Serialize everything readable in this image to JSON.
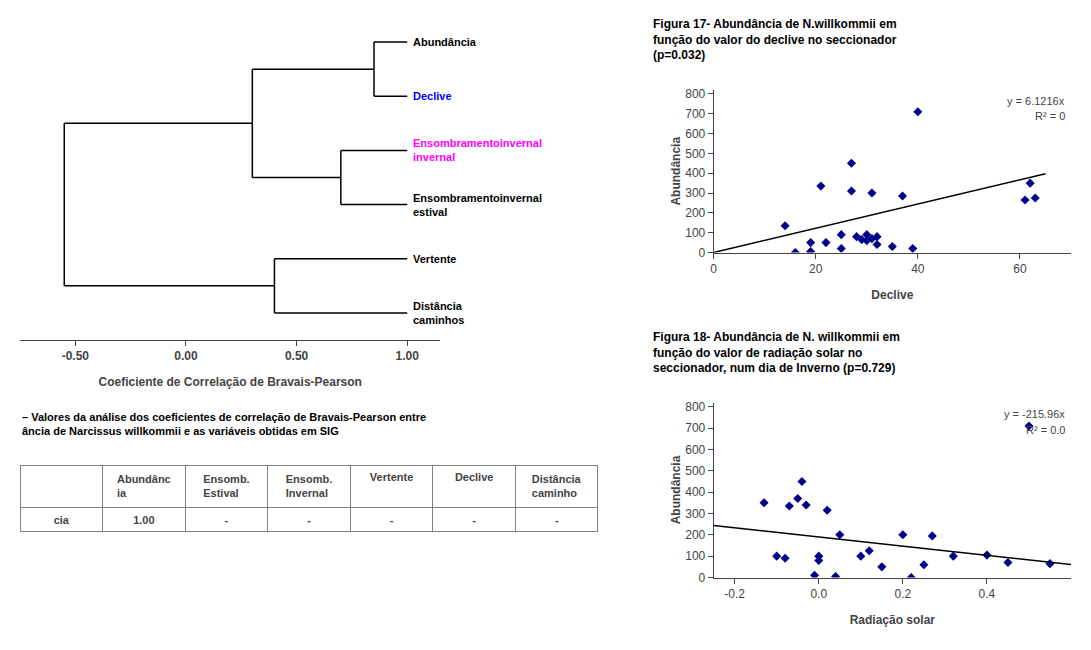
{
  "chart_data": [
    {
      "type": "dendrogram",
      "xlabel": "Coeficiente de Correlação de Bravais-Pearson",
      "xlim": [
        -0.75,
        1.15
      ],
      "xticks": [
        {
          "value": -0.5,
          "label": "-0.50"
        },
        {
          "value": 0.0,
          "label": "0.00"
        },
        {
          "value": 0.5,
          "label": "0.50"
        },
        {
          "value": 1.0,
          "label": "1.00"
        }
      ],
      "grid": false,
      "color": "#000000",
      "leaf_x": 1.0,
      "leaves": [
        "Abundância",
        "Declive",
        "Ensombramentoinvernal\ninvernal",
        "Ensombramentoinvernal\nestival",
        "Vertente",
        "Distância\ncaminhos"
      ],
      "colors": [
        "#000000",
        "#0000ff",
        "#ff00ff",
        "#000000",
        "#000000",
        "#000000"
      ],
      "merges": [
        {
          "a": 0,
          "b": 1,
          "x": 0.85
        },
        {
          "a": 2,
          "b": 3,
          "x": 0.7
        },
        {
          "a": 6,
          "b": 7,
          "x": 0.3
        },
        {
          "a": 4,
          "b": 5,
          "x": 0.4
        },
        {
          "a": 8,
          "b": 9,
          "x": -0.55
        }
      ]
    },
    {
      "type": "scatter",
      "title": "Figura 17- Abundância de N.willkommii em\nfunção do valor do declive no seccionador\n(p=0.032)",
      "x": [
        14,
        16,
        19,
        19,
        21,
        22,
        25,
        25,
        27,
        27,
        28,
        29,
        30,
        30,
        31,
        31,
        32,
        32,
        35,
        37,
        39,
        40,
        61,
        62,
        63
      ],
      "values": [
        135,
        0,
        50,
        5,
        335,
        50,
        90,
        20,
        310,
        450,
        80,
        65,
        90,
        60,
        70,
        300,
        40,
        80,
        30,
        285,
        20,
        710,
        265,
        350,
        275
      ],
      "color": "#00008b",
      "marker": "diamond",
      "xlabel": "Declive",
      "ylabel": "Abundância",
      "xlim": [
        0,
        70
      ],
      "ylim": [
        0,
        820
      ],
      "xticks": [
        0,
        20,
        40,
        60
      ],
      "yticks": [
        0,
        100,
        200,
        300,
        400,
        500,
        600,
        700,
        800
      ],
      "grid": false,
      "trendline": {
        "x": [
          0,
          65
        ],
        "values": [
          0,
          397.904
        ],
        "color": "#000000"
      },
      "annotations": [
        "y = 6.1216x",
        "R² = 0"
      ]
    },
    {
      "type": "scatter",
      "title": "Figura 18- Abundância de N. willkommii em\nfunção do valor de radiação solar no\nseccionador, num dia de Inverno (p=0.729)",
      "x": [
        -0.13,
        -0.1,
        -0.08,
        -0.07,
        -0.05,
        -0.04,
        -0.03,
        -0.01,
        0.0,
        0.0,
        0.02,
        0.04,
        0.05,
        0.1,
        0.12,
        0.15,
        0.2,
        0.22,
        0.25,
        0.27,
        0.32,
        0.4,
        0.45,
        0.5,
        0.55
      ],
      "values": [
        350,
        100,
        90,
        335,
        370,
        450,
        340,
        10,
        80,
        100,
        315,
        5,
        200,
        100,
        125,
        50,
        200,
        0,
        60,
        195,
        100,
        105,
        70,
        710,
        65
      ],
      "color": "#00008b",
      "marker": "diamond",
      "xlabel": "Radiação solar",
      "ylabel": "Abundância",
      "xlim": [
        -0.25,
        0.6
      ],
      "ylim": [
        0,
        820
      ],
      "xticks": [
        -0.2,
        {
          "value": 0,
          "label": "0.0"
        },
        0.2,
        0.4
      ],
      "yticks": [
        0,
        100,
        200,
        300,
        400,
        500,
        600,
        700,
        800
      ],
      "grid": false,
      "trendline": {
        "x": [
          -0.25,
          0.6
        ],
        "values": [
          243.99,
          60.424
        ],
        "color": "#000000"
      },
      "annotations": [
        "y = -215.96x",
        "R² = 0.0"
      ]
    },
    {
      "type": "table",
      "title": "– Valores da análise dos coeficientes de correlação de Bravais-Pearson entre\nância de Narcissus willkommii e as variáveis obtidas em SIG",
      "columns": [
        "Abundânc\nia",
        "Ensomb.\nEstival",
        "Ensomb.\nInvernal",
        "Vertente",
        "Declive",
        "Distância\ncaminho"
      ],
      "rows": [
        {
          "label": "cia",
          "cells": [
            "1.00",
            "-",
            "-",
            "-",
            "-",
            "-"
          ]
        }
      ]
    }
  ]
}
